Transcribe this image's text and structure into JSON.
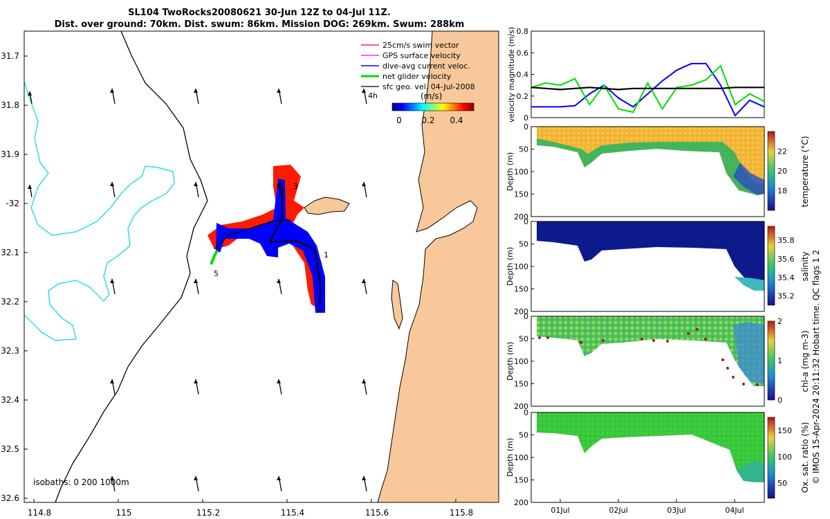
{
  "title": {
    "line1": "SL104 TwoRocks20080621 30-Jun 12Z to 04-Jul 11Z.",
    "line2": "Dist. over ground: 70km. Dist. swum: 86km. Mission DOG: 269km. Swum: 288km"
  },
  "map": {
    "lat_ticks": [
      "31.7",
      "31.8",
      "31.9",
      "-32",
      "32.1",
      "32.2",
      "32.3",
      "32.4",
      "32.5",
      "32.6"
    ],
    "lon_ticks": [
      "114.8",
      "115",
      "115.2",
      "115.4",
      "115.6",
      "115.8"
    ],
    "legend": [
      {
        "label": "25cm/s swim vector",
        "color": "#ff0000"
      },
      {
        "label": "GPS surface velocity",
        "color": "#ff00ff"
      },
      {
        "label": "dive-avg current veloc.",
        "color": "#0000ff"
      },
      {
        "label": "net glider velocity",
        "color": "#00dd00"
      },
      {
        "label": "sfc geo. vel. 04-Jul-2008",
        "color": "#000000"
      }
    ],
    "colorbar": {
      "title": "(m/s)",
      "prefix": "4h",
      "ticks": [
        "0",
        "0.2",
        "0.4"
      ]
    },
    "isobaths_label": "isobaths: 0   200  1000m",
    "waypoints": [
      "1",
      "3",
      "5"
    ],
    "colors": {
      "land": "#f9c89a",
      "isobath_200": "#000000",
      "isobath_1000": "#33dddd"
    }
  },
  "chart_data": [
    {
      "type": "line",
      "title": "",
      "xlabel": "",
      "ylabel": "velocity magnitude (m/s)",
      "ylim": [
        0,
        0.8
      ],
      "yticks": [
        "0",
        "0.2",
        "0.4",
        "0.6",
        "0.8"
      ],
      "x": [
        0,
        0.25,
        0.5,
        0.75,
        1.0,
        1.25,
        1.5,
        1.75,
        2.0,
        2.25,
        2.5,
        2.75,
        3.0,
        3.25,
        3.5,
        3.75,
        4.0
      ],
      "series": [
        {
          "name": "dive-avg current",
          "color": "#0000ff",
          "values": [
            0.1,
            0.1,
            0.1,
            0.11,
            0.22,
            0.3,
            0.18,
            0.1,
            0.22,
            0.34,
            0.44,
            0.5,
            0.5,
            0.3,
            0.02,
            0.16,
            0.1
          ]
        },
        {
          "name": "net glider velocity",
          "color": "#00dd00",
          "values": [
            0.28,
            0.32,
            0.3,
            0.36,
            0.12,
            0.3,
            0.08,
            0.05,
            0.32,
            0.08,
            0.28,
            0.3,
            0.35,
            0.48,
            0.12,
            0.22,
            0.15
          ]
        },
        {
          "name": "swim speed",
          "color": "#000000",
          "values": [
            0.28,
            0.27,
            0.26,
            0.27,
            0.28,
            0.27,
            0.26,
            0.27,
            0.27,
            0.27,
            0.27,
            0.27,
            0.27,
            0.27,
            0.28,
            0.28,
            0.28
          ]
        }
      ]
    },
    {
      "type": "heatmap",
      "ylabel": "Depth (m)",
      "colorbar_label": "temperature (°C)",
      "ylim": [
        200,
        0
      ],
      "yticks": [
        "0",
        "50",
        "100",
        "150",
        "200"
      ],
      "cbar_ticks": [
        "18",
        "20",
        "22"
      ],
      "cbar_range": [
        16,
        24
      ]
    },
    {
      "type": "heatmap",
      "ylabel": "Depth (m)",
      "colorbar_label": "salinity",
      "ylim": [
        200,
        0
      ],
      "yticks": [
        "0",
        "50",
        "100",
        "150",
        "200"
      ],
      "cbar_ticks": [
        "35.2",
        "35.4",
        "35.6",
        "35.8"
      ],
      "cbar_range": [
        35.1,
        35.95
      ]
    },
    {
      "type": "heatmap",
      "ylabel": "Depth (m)",
      "colorbar_label": "chl-a (mg m-3)",
      "ylim": [
        200,
        0
      ],
      "yticks": [
        "0",
        "50",
        "100",
        "150",
        "200"
      ],
      "cbar_ticks": [
        "0",
        "1",
        "2"
      ],
      "cbar_range": [
        0,
        2
      ]
    },
    {
      "type": "heatmap",
      "ylabel": "Depth (m)",
      "colorbar_label": "Ox. sat. ratio (%)",
      "ylim": [
        200,
        0
      ],
      "yticks": [
        "0",
        "50",
        "100",
        "150",
        "200"
      ],
      "cbar_ticks": [
        "50",
        "100",
        "150"
      ],
      "cbar_range": [
        25,
        175
      ]
    }
  ],
  "time_axis": {
    "ticks": [
      "01Jul",
      "02Jul",
      "03Jul",
      "04Jul"
    ]
  },
  "footer": "© IMOS 15-Apr-2024 20:11:32 Hobart time. QC flags 1  2"
}
